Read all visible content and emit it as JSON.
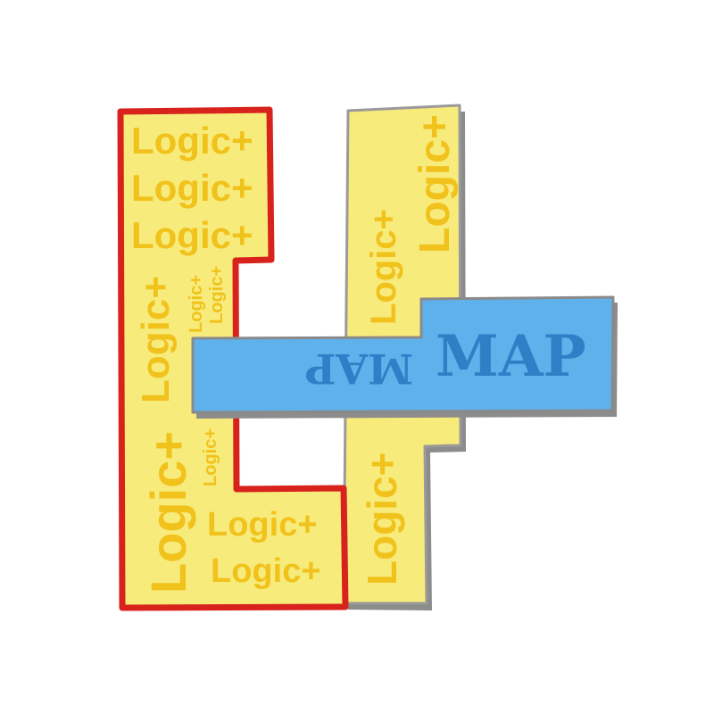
{
  "logo": {
    "left_piece_text": "Logic+",
    "right_piece_text": "Logic+",
    "map_text": "MAP",
    "map_text_mirrored": "MAP",
    "colors": {
      "yellow_fill": "#f7eb7c",
      "yellow_text": "#f1c21b",
      "red_outline": "#d8231c",
      "gray_outline": "#8c8c8c",
      "blue_fill": "#5fb1ec",
      "blue_text": "#2f7fc6"
    }
  }
}
